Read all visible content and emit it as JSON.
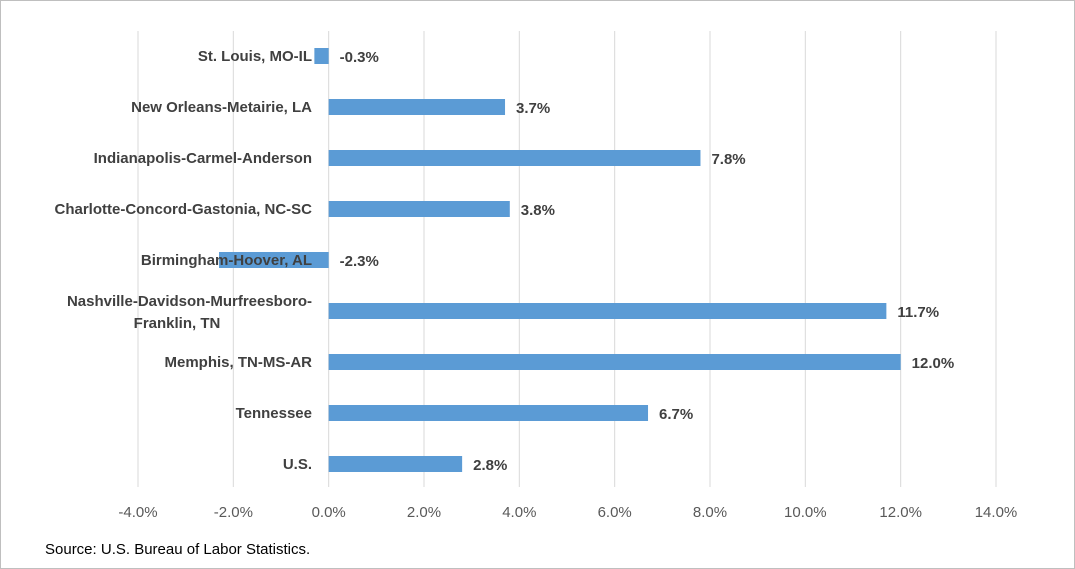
{
  "chart_data": {
    "type": "bar",
    "orientation": "horizontal",
    "title": "",
    "xlabel": "",
    "ylabel": "",
    "xlim": [
      -4.0,
      14.0
    ],
    "x_ticks": [
      -4.0,
      -2.0,
      0.0,
      2.0,
      4.0,
      6.0,
      8.0,
      10.0,
      12.0,
      14.0
    ],
    "x_tick_labels": [
      "-4.0%",
      "-2.0%",
      "0.0%",
      "2.0%",
      "4.0%",
      "6.0%",
      "8.0%",
      "10.0%",
      "12.0%",
      "14.0%"
    ],
    "grid": "vertical",
    "bar_color": "#5b9bd5",
    "categories": [
      [
        "St. Louis, MO-IL"
      ],
      [
        "New Orleans-Metairie, LA"
      ],
      [
        "Indianapolis-Carmel-Anderson"
      ],
      [
        "Charlotte-Concord-Gastonia, NC-SC"
      ],
      [
        "Birmingham-Hoover, AL"
      ],
      [
        "Nashville-Davidson-Murfreesboro-",
        "Franklin, TN"
      ],
      [
        "Memphis, TN-MS-AR"
      ],
      [
        "Tennessee"
      ],
      [
        "U.S."
      ]
    ],
    "values": [
      -0.3,
      3.7,
      7.8,
      3.8,
      -2.3,
      11.7,
      12.0,
      6.7,
      2.8
    ],
    "value_labels": [
      "-0.3%",
      "3.7%",
      "7.8%",
      "3.8%",
      "-2.3%",
      "11.7%",
      "12.0%",
      "6.7%",
      "2.8%"
    ]
  },
  "source": "Source:  U.S. Bureau of Labor Statistics."
}
